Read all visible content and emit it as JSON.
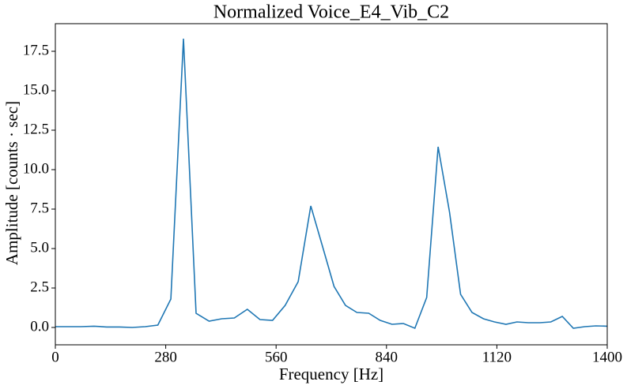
{
  "chart_data": {
    "type": "line",
    "title": "Normalized Voice_E4_Vib_C2",
    "x_label": "Frequency [Hz]",
    "y_label": "Amplitude [counts · sec]",
    "series": [
      {
        "name": "Voice_E4_Vib_C2",
        "color": "#1f77b4",
        "x": [
          0,
          33,
          65,
          98,
          130,
          163,
          195,
          228,
          260,
          293,
          325,
          357,
          390,
          422,
          454,
          487,
          519,
          551,
          583,
          616,
          648,
          677,
          707,
          736,
          765,
          795,
          824,
          854,
          883,
          912,
          942,
          971,
          1000,
          1028,
          1057,
          1086,
          1114,
          1143,
          1171,
          1200,
          1229,
          1257,
          1286,
          1314,
          1343,
          1371,
          1400
        ],
        "values": [
          0.05,
          0.05,
          0.05,
          0.08,
          0.03,
          0.03,
          0.0,
          0.05,
          0.15,
          1.8,
          18.3,
          0.9,
          0.4,
          0.55,
          0.6,
          1.15,
          0.5,
          0.45,
          1.4,
          2.9,
          7.7,
          5.2,
          2.6,
          1.4,
          0.95,
          0.9,
          0.45,
          0.2,
          0.25,
          -0.05,
          1.9,
          11.45,
          7.3,
          2.1,
          0.95,
          0.55,
          0.35,
          0.2,
          0.35,
          0.3,
          0.3,
          0.35,
          0.7,
          -0.05,
          0.05,
          0.1,
          0.08
        ]
      }
    ],
    "xlim": [
      0,
      1400
    ],
    "ylim": [
      -1.1,
      19.25
    ],
    "xticks": [
      0,
      280,
      560,
      840,
      1120,
      1400
    ],
    "yticks": [
      {
        "value": 0,
        "label": "0.0"
      },
      2.5,
      {
        "value": 5,
        "label": "5.0"
      },
      7.5,
      {
        "value": 10,
        "label": "10.0"
      },
      12.5,
      {
        "value": 15,
        "label": "15.0"
      },
      17.5
    ]
  }
}
